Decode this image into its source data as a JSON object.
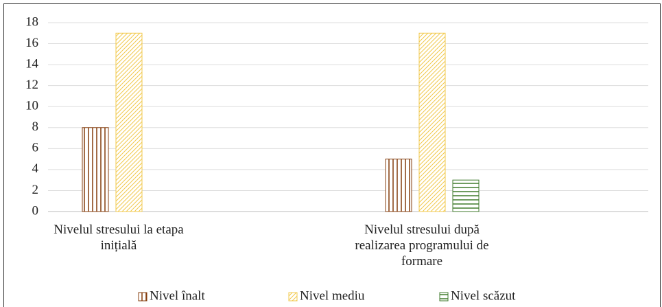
{
  "chart_data": {
    "type": "bar",
    "categories": [
      "Nivelul stresului la etapa inițială",
      "Nivelul stresului după realizarea programului de formare"
    ],
    "series": [
      {
        "name": "Nivel înalt",
        "color": "#843c0c",
        "values": [
          8,
          5
        ]
      },
      {
        "name": "Nivel mediu",
        "color": "#f2c94c",
        "values": [
          17,
          17
        ]
      },
      {
        "name": "Nivel scăzut",
        "color": "#3f7a2b",
        "values": [
          0,
          3
        ]
      }
    ],
    "ylim": [
      0,
      18
    ],
    "yticks": [
      0,
      2,
      4,
      6,
      8,
      10,
      12,
      14,
      16,
      18
    ],
    "grid": true
  }
}
